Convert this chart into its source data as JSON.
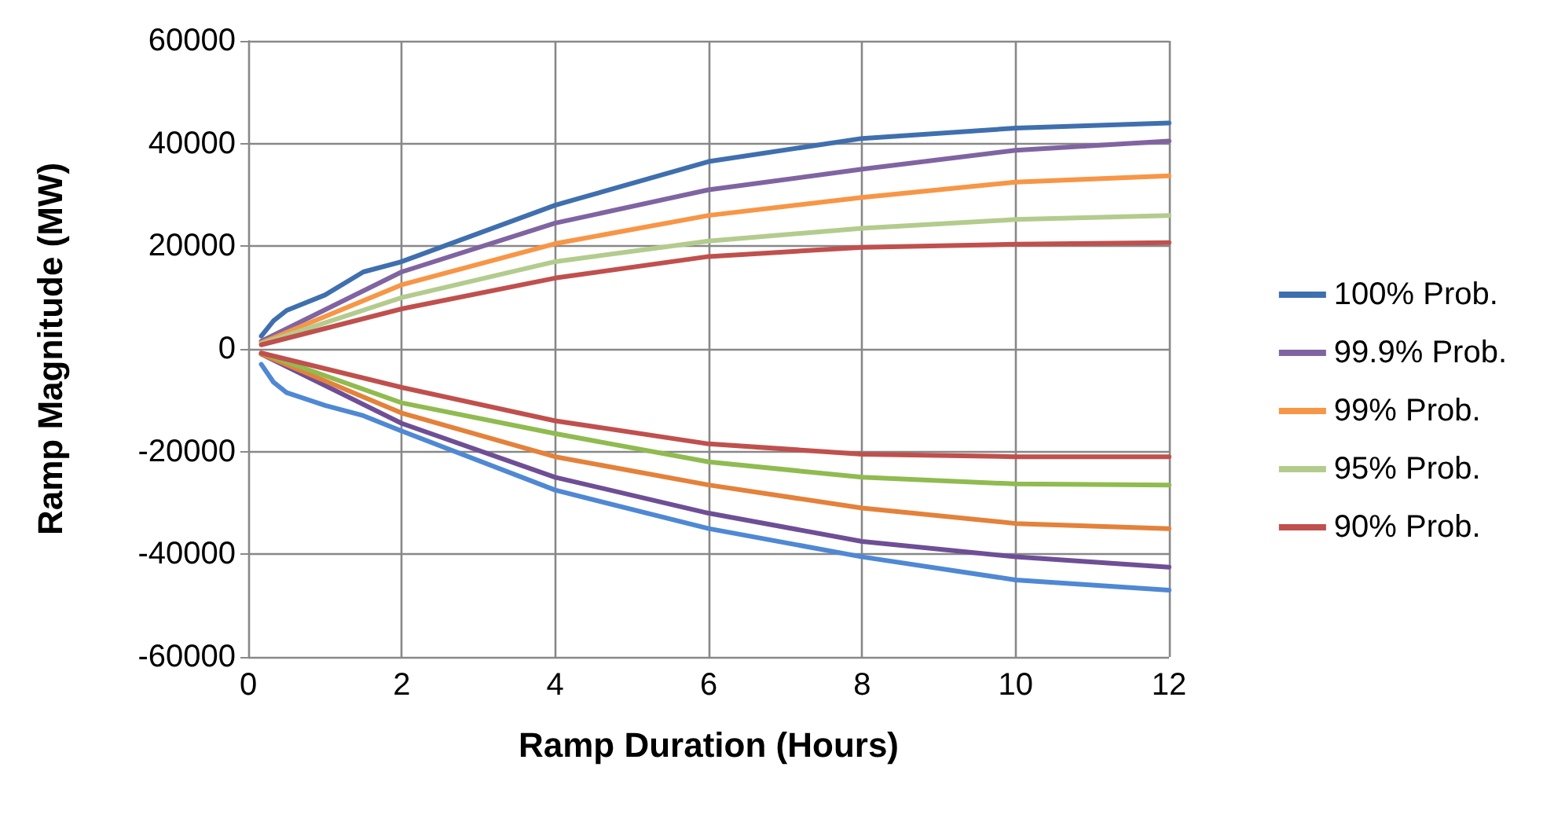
{
  "chart_data": {
    "type": "line",
    "xlabel": "Ramp Duration (Hours)",
    "ylabel": "Ramp Magnitude (MW)",
    "xlim": [
      0,
      12
    ],
    "xticks": [
      0,
      2,
      4,
      6,
      8,
      10,
      12
    ],
    "ylim": [
      -60000,
      60000
    ],
    "yticks": [
      -60000,
      -40000,
      -20000,
      0,
      20000,
      40000,
      60000
    ],
    "grid": true,
    "legend": "right",
    "marker": "none",
    "line_style": "solid",
    "series": [
      {
        "name": "100% Prob.",
        "color": "#3f6fae",
        "x": [
          0.17,
          0.33,
          0.5,
          1,
          1.5,
          2,
          4,
          6,
          8,
          10,
          12
        ],
        "values": [
          2500,
          5500,
          7500,
          10500,
          15000,
          17000,
          28000,
          36500,
          41000,
          43000,
          44000
        ]
      },
      {
        "name": "99.9% Prob.",
        "color": "#8064a2",
        "x": [
          0.17,
          2,
          4,
          6,
          8,
          10,
          12
        ],
        "values": [
          1500,
          15000,
          24500,
          31000,
          35000,
          38700,
          40500
        ]
      },
      {
        "name": "99% Prob.",
        "color": "#f79646",
        "x": [
          0.17,
          2,
          4,
          6,
          8,
          10,
          12
        ],
        "values": [
          1200,
          12500,
          20500,
          26000,
          29500,
          32500,
          33700
        ]
      },
      {
        "name": "95% Prob.",
        "color": "#b3cc8e",
        "x": [
          0.17,
          2,
          4,
          6,
          8,
          10,
          12
        ],
        "values": [
          1000,
          10000,
          17000,
          21000,
          23500,
          25200,
          26000
        ]
      },
      {
        "name": "90% Prob.",
        "color": "#c0504d",
        "x": [
          0.17,
          2,
          4,
          6,
          8,
          10,
          12
        ],
        "values": [
          800,
          7800,
          13800,
          18000,
          19800,
          20400,
          20700
        ]
      },
      {
        "color": "#4f88d4",
        "x": [
          0.17,
          0.33,
          0.5,
          1,
          1.5,
          2,
          4,
          6,
          8,
          10,
          12
        ],
        "values": [
          -3000,
          -6500,
          -8500,
          -11000,
          -13000,
          -16000,
          -27500,
          -35000,
          -40500,
          -45000,
          -47000
        ]
      },
      {
        "color": "#6e4f96",
        "x": [
          0.17,
          2,
          4,
          6,
          8,
          10,
          12
        ],
        "values": [
          -1000,
          -14500,
          -25000,
          -32000,
          -37500,
          -40500,
          -42500
        ]
      },
      {
        "color": "#e4813a",
        "x": [
          0.17,
          2,
          4,
          6,
          8,
          10,
          12
        ],
        "values": [
          -1000,
          -12500,
          -21000,
          -26500,
          -31000,
          -34000,
          -35000
        ]
      },
      {
        "color": "#90bb50",
        "x": [
          0.17,
          2,
          4,
          6,
          8,
          10,
          12
        ],
        "values": [
          -800,
          -10500,
          -16500,
          -22000,
          -25000,
          -26300,
          -26500
        ]
      },
      {
        "color": "#c0504d",
        "x": [
          0.17,
          2,
          4,
          6,
          8,
          10,
          12
        ],
        "values": [
          -800,
          -7500,
          -14000,
          -18500,
          -20500,
          -21000,
          -21000
        ]
      }
    ]
  }
}
